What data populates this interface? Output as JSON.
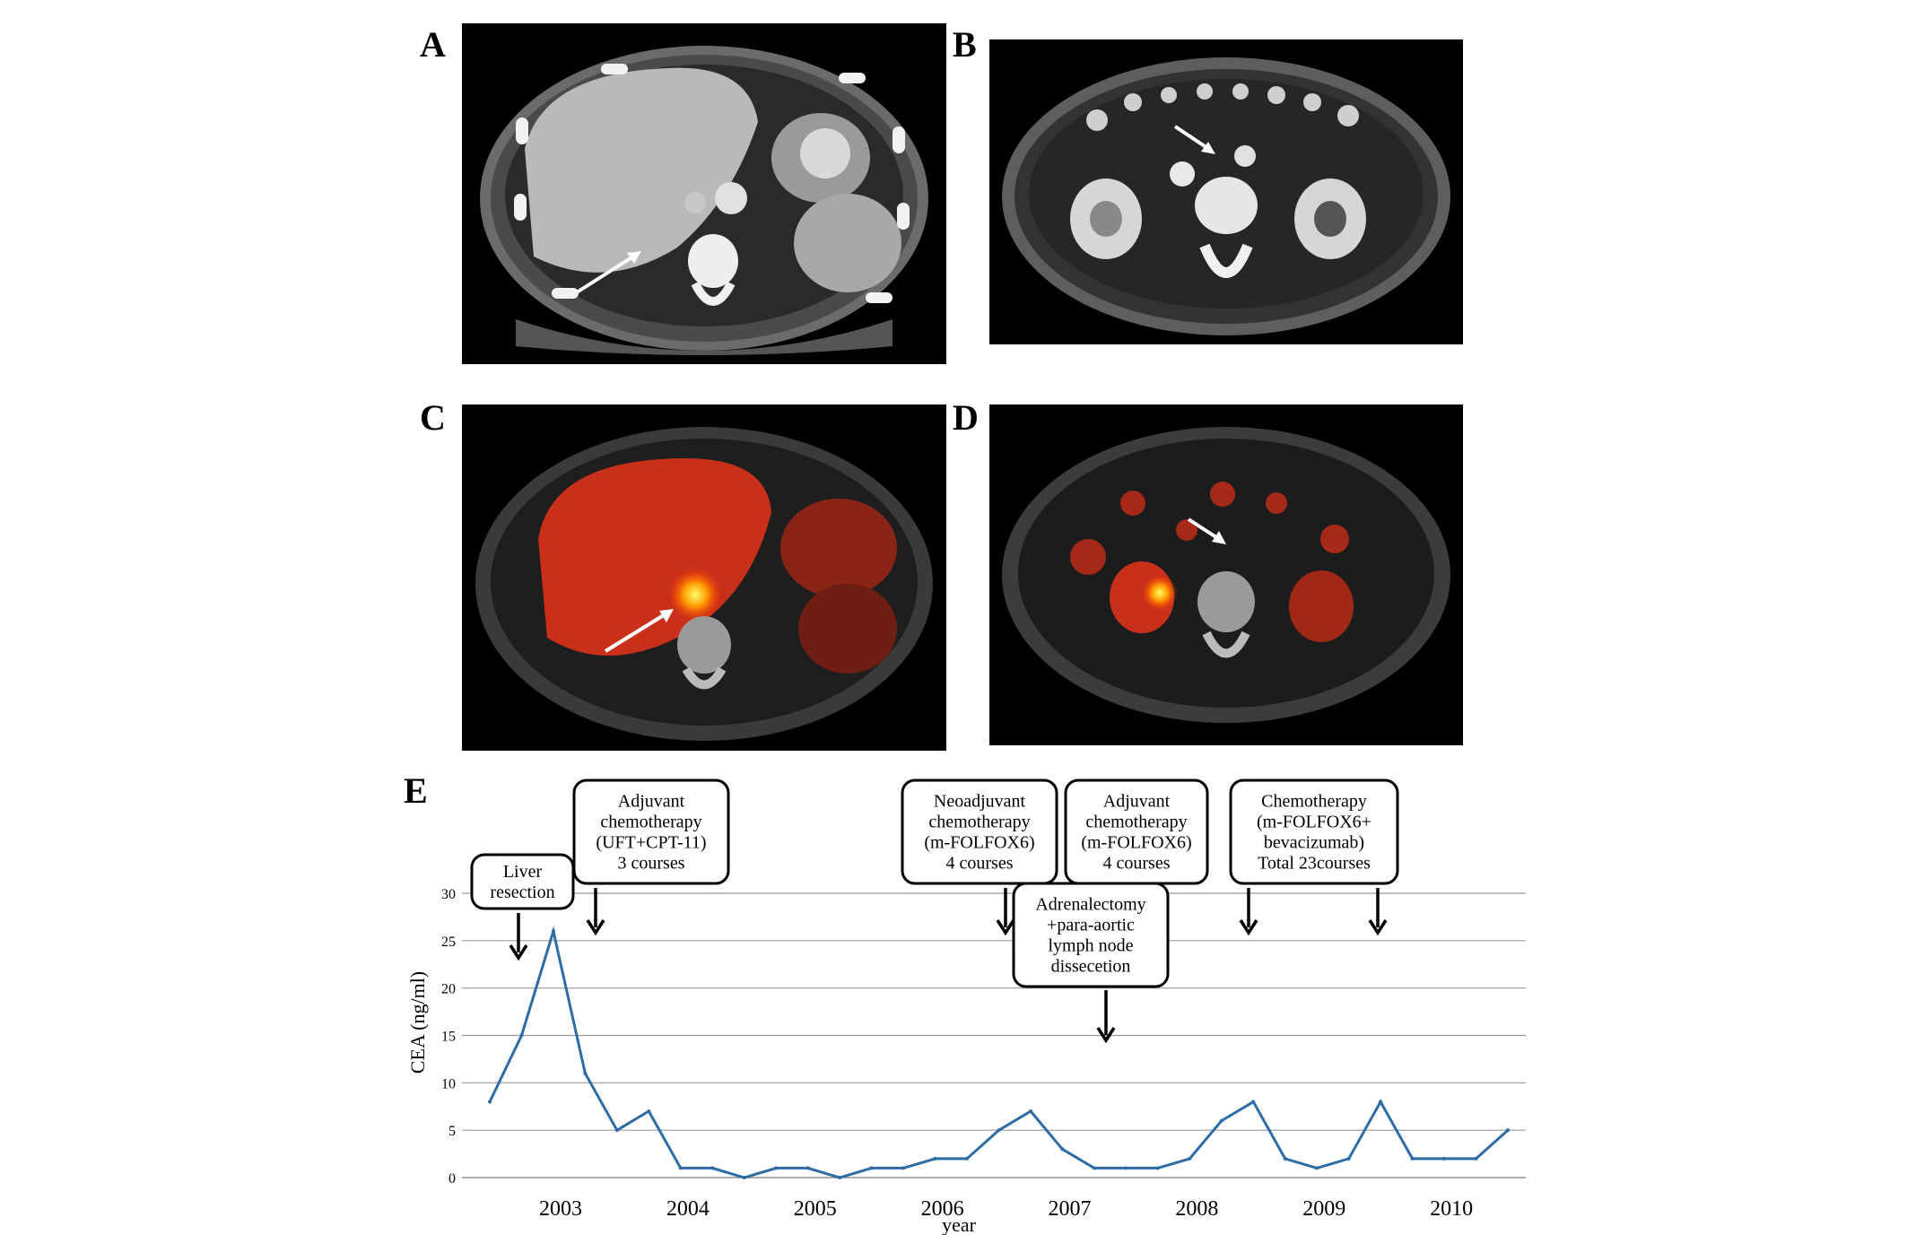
{
  "panels": {
    "a": {
      "label": "A"
    },
    "b": {
      "label": "B"
    },
    "c": {
      "label": "C"
    },
    "d": {
      "label": "D"
    },
    "e": {
      "label": "E"
    }
  },
  "chart_data": {
    "type": "line",
    "title": "",
    "xlabel": "year",
    "ylabel": "CEA (ng/ml)",
    "ylim": [
      0,
      30
    ],
    "yticks": [
      0,
      5,
      10,
      15,
      20,
      25,
      30
    ],
    "xticks": [
      "2003",
      "2004",
      "2005",
      "2006",
      "2007",
      "2008",
      "2009",
      "2010"
    ],
    "grid": true,
    "line_color": "#2e6ca6",
    "points": [
      {
        "x": "2002-11",
        "y": 8
      },
      {
        "x": "2003-02",
        "y": 15
      },
      {
        "x": "2003-05",
        "y": 26
      },
      {
        "x": "2003-08",
        "y": 11
      },
      {
        "x": "2003-11",
        "y": 5
      },
      {
        "x": "2004-02",
        "y": 7
      },
      {
        "x": "2004-05",
        "y": 1
      },
      {
        "x": "2004-08",
        "y": 1
      },
      {
        "x": "2004-11",
        "y": 0
      },
      {
        "x": "2005-02",
        "y": 1
      },
      {
        "x": "2005-05",
        "y": 1
      },
      {
        "x": "2005-08",
        "y": 0
      },
      {
        "x": "2005-11",
        "y": 1
      },
      {
        "x": "2006-02",
        "y": 1
      },
      {
        "x": "2006-05",
        "y": 2
      },
      {
        "x": "2006-08",
        "y": 2
      },
      {
        "x": "2006-11",
        "y": 5
      },
      {
        "x": "2007-02",
        "y": 7
      },
      {
        "x": "2007-05",
        "y": 3
      },
      {
        "x": "2007-08",
        "y": 1
      },
      {
        "x": "2007-11",
        "y": 1
      },
      {
        "x": "2008-02",
        "y": 1
      },
      {
        "x": "2008-05",
        "y": 2
      },
      {
        "x": "2008-08",
        "y": 6
      },
      {
        "x": "2008-11",
        "y": 8
      },
      {
        "x": "2009-02",
        "y": 2
      },
      {
        "x": "2009-05",
        "y": 1
      },
      {
        "x": "2009-08",
        "y": 2
      },
      {
        "x": "2009-11",
        "y": 8
      },
      {
        "x": "2010-02",
        "y": 2
      },
      {
        "x": "2010-05",
        "y": 2
      },
      {
        "x": "2010-08",
        "y": 2
      },
      {
        "x": "2010-11",
        "y": 5
      }
    ],
    "annotations": [
      {
        "lines": [
          "Liver",
          "resection"
        ]
      },
      {
        "lines": [
          "Adjuvant",
          "chemotherapy",
          "(UFT+CPT-11)",
          "3 courses"
        ]
      },
      {
        "lines": [
          "Neoadjuvant",
          "chemotherapy",
          "(m-FOLFOX6)",
          "4 courses"
        ]
      },
      {
        "lines": [
          "Adjuvant",
          "chemotherapy",
          "(m-FOLFOX6)",
          "4 courses"
        ]
      },
      {
        "lines": [
          "Adrenalectomy",
          "+para-aortic",
          "lymph node",
          "dissecetion"
        ]
      },
      {
        "lines": [
          "Chemotherapy",
          "(m-FOLFOX6+",
          "bevacizumab)",
          "Total 23courses"
        ]
      }
    ]
  }
}
